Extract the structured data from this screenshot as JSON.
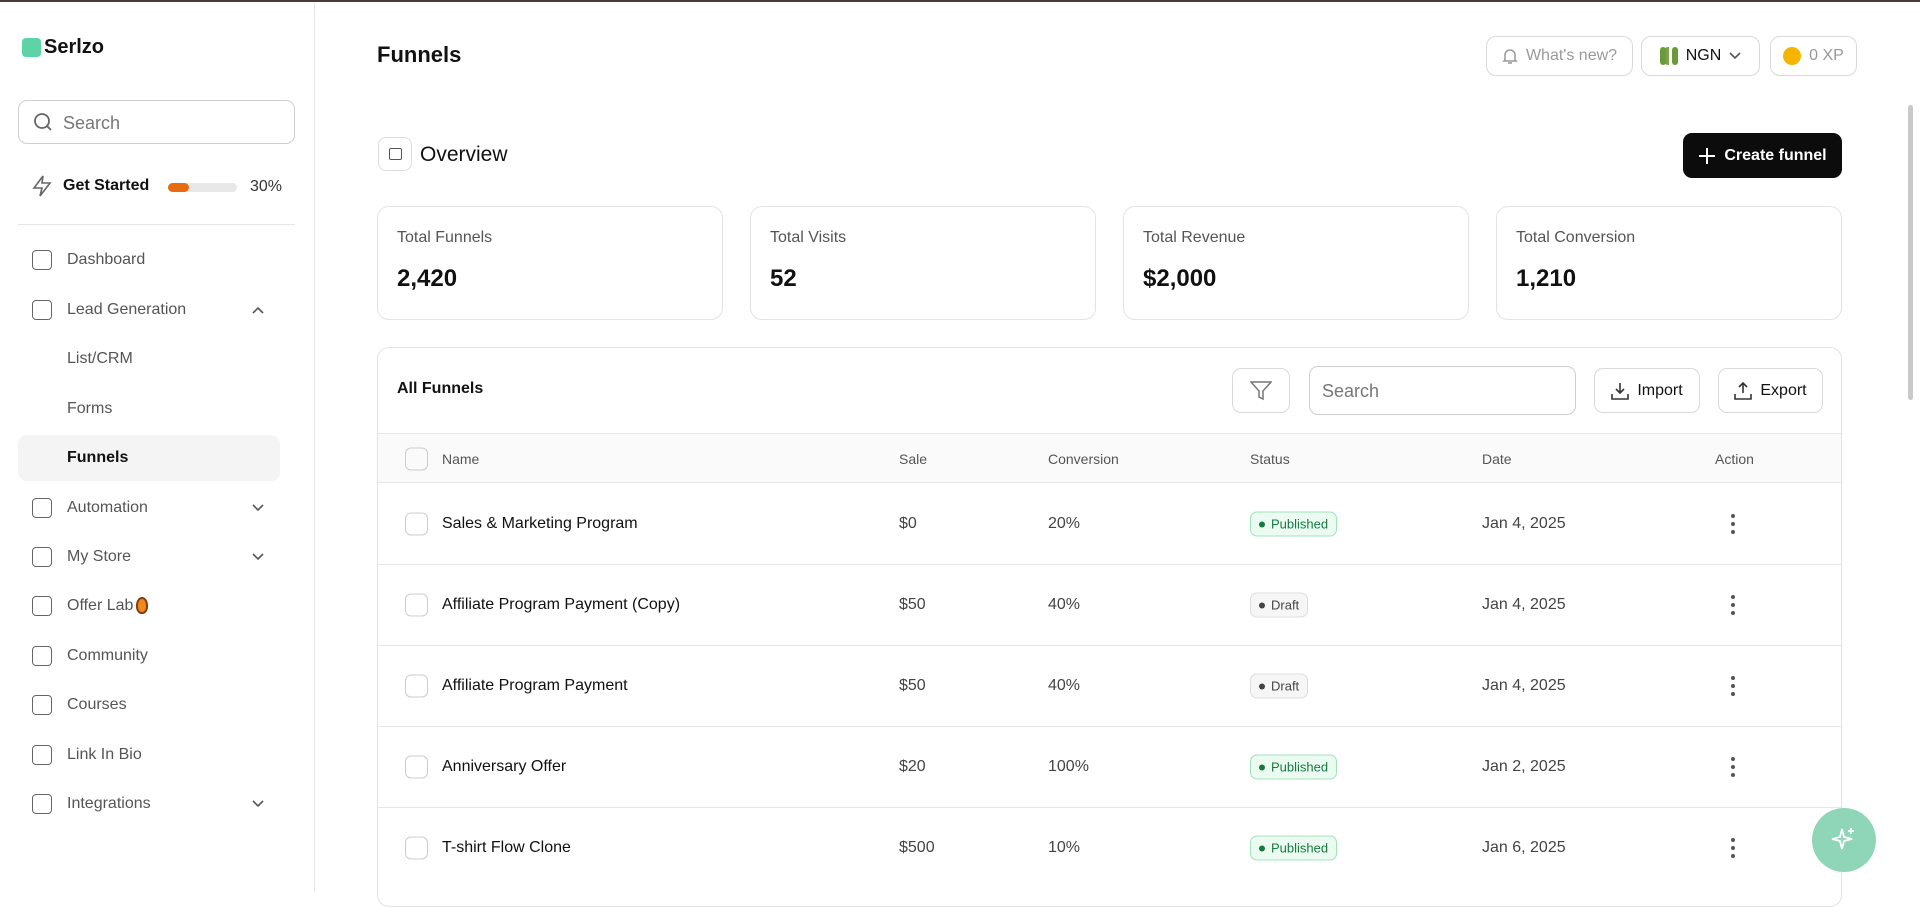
{
  "brand": "Serlzo",
  "sidebar": {
    "search_placeholder": "Search",
    "get_started": "Get Started",
    "progress": "30%",
    "nav": [
      "Dashboard",
      "Lead Generation",
      "List/CRM",
      "Forms",
      "Funnels",
      "Automation",
      "My Store",
      "Offer Lab",
      "Community",
      "Courses",
      "Link In Bio",
      "Integrations"
    ]
  },
  "header": {
    "title": "Funnels",
    "whats_new": "What's new?",
    "currency": "NGN",
    "xp": "0 XP"
  },
  "overview": {
    "title": "Overview",
    "create_button": "Create funnel",
    "stats": [
      {
        "label": "Total Funnels",
        "value": "2,420"
      },
      {
        "label": "Total Visits",
        "value": "52"
      },
      {
        "label": "Total Revenue",
        "value": "$2,000"
      },
      {
        "label": "Total Conversion",
        "value": "1,210"
      }
    ]
  },
  "table": {
    "title": "All Funnels",
    "search_placeholder": "Search",
    "import": "Import",
    "export": "Export",
    "columns": [
      "Name",
      "Sale",
      "Conversion",
      "Status",
      "Date",
      "Action"
    ],
    "rows": [
      [
        "Sales & Marketing Program",
        "$0",
        "20%",
        "Published",
        "Jan 4, 2025"
      ],
      [
        "Affiliate Program Payment (Copy)",
        "$50",
        "40%",
        "Draft",
        "Jan 4, 2025"
      ],
      [
        "Affiliate Program Payment",
        "$50",
        "40%",
        "Draft",
        "Jan 4, 2025"
      ],
      [
        "Anniversary Offer",
        "$20",
        "100%",
        "Published",
        "Jan 2, 2025"
      ],
      [
        "T-shirt Flow Clone",
        "$500",
        "10%",
        "Published",
        "Jan 6, 2025"
      ]
    ]
  }
}
